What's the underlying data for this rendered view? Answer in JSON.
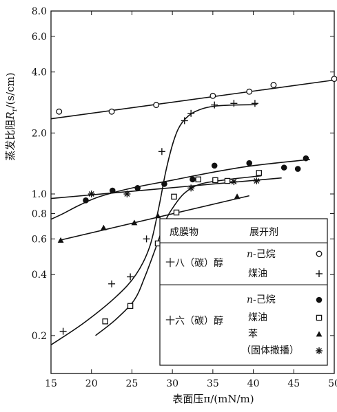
{
  "chart_data": {
    "type": "scatter",
    "title": "",
    "xlabel": "表面压π/(mN/m)",
    "ylabel": "蒸发比阻R_r/(s/cm)",
    "ylabel_main": "蒸发比阻",
    "ylabel_var": "R",
    "ylabel_sub": "r",
    "ylabel_unit": "/(s/cm)",
    "xlim": [
      15,
      50
    ],
    "ylim": [
      0.13,
      8.0
    ],
    "yscale": "log",
    "x_ticks": [
      15,
      20,
      25,
      30,
      35,
      40,
      45,
      50
    ],
    "y_ticks": [
      {
        "value": 0.2,
        "label": "0.2"
      },
      {
        "value": 0.4,
        "label": "0.4"
      },
      {
        "value": 0.6,
        "label": "0.6"
      },
      {
        "value": 0.8,
        "label": "0.8"
      },
      {
        "value": 1.0,
        "label": "1.0"
      },
      {
        "value": 2.0,
        "label": "2.0"
      },
      {
        "value": 4.0,
        "label": "4.0"
      },
      {
        "value": 6.0,
        "label": "6.0"
      },
      {
        "value": 8.0,
        "label": "8.0"
      }
    ],
    "grid": false,
    "legend": {
      "position": "bottom-right",
      "header_film": "成膜物",
      "header_solvent": "展开剂",
      "groups": [
        {
          "film": "十八（碳）醇",
          "items": [
            {
              "solvent_prefix": "n",
              "solvent": "-己烷",
              "marker": "circle-open"
            },
            {
              "solvent_prefix": "",
              "solvent": "煤油",
              "marker": "plus"
            }
          ]
        },
        {
          "film": "十六（碳）醇",
          "items": [
            {
              "solvent_prefix": "n",
              "solvent": "-己烷",
              "marker": "circle-filled"
            },
            {
              "solvent_prefix": "",
              "solvent": "煤油",
              "marker": "square-open"
            },
            {
              "solvent_prefix": "",
              "solvent": "苯",
              "marker": "triangle-filled"
            },
            {
              "solvent_prefix": "",
              "solvent": "（固体撒播）",
              "marker": "asterisk"
            }
          ]
        }
      ]
    },
    "series": [
      {
        "key": "octadecanol-hexane",
        "marker": "circle-open",
        "points": [
          [
            16,
            2.55
          ],
          [
            22.5,
            2.55
          ],
          [
            28,
            2.75
          ],
          [
            35,
            3.05
          ],
          [
            39.5,
            3.2
          ],
          [
            42.5,
            3.45
          ],
          [
            50,
            3.7
          ]
        ],
        "fit": [
          [
            15,
            2.35
          ],
          [
            50,
            3.65
          ]
        ]
      },
      {
        "key": "octadecanol-kerosene",
        "marker": "plus",
        "points": [
          [
            16.5,
            0.21
          ],
          [
            22.5,
            0.36
          ],
          [
            24.8,
            0.39
          ],
          [
            26.8,
            0.6
          ],
          [
            28.7,
            1.62
          ],
          [
            31.5,
            2.3
          ],
          [
            32.3,
            2.5
          ],
          [
            35.2,
            2.75
          ],
          [
            37.6,
            2.8
          ],
          [
            40.2,
            2.8
          ]
        ],
        "fit": [
          [
            15,
            0.18
          ],
          [
            19,
            0.23
          ],
          [
            23,
            0.31
          ],
          [
            25.5,
            0.4
          ],
          [
            27.2,
            0.55
          ],
          [
            28.3,
            0.85
          ],
          [
            29.2,
            1.3
          ],
          [
            30.2,
            1.85
          ],
          [
            31.2,
            2.25
          ],
          [
            32.8,
            2.55
          ],
          [
            35.5,
            2.72
          ],
          [
            40.5,
            2.76
          ]
        ]
      },
      {
        "key": "hexadecanol-hexane",
        "marker": "circle-filled",
        "points": [
          [
            19.3,
            0.93
          ],
          [
            22.6,
            1.04
          ],
          [
            25.7,
            1.07
          ],
          [
            29,
            1.12
          ],
          [
            32.5,
            1.18
          ],
          [
            35.2,
            1.38
          ],
          [
            39.5,
            1.42
          ],
          [
            43.8,
            1.35
          ],
          [
            45.5,
            1.33
          ],
          [
            46.5,
            1.5
          ]
        ],
        "fit": [
          [
            15,
            0.75
          ],
          [
            16.5,
            0.8
          ],
          [
            18.5,
            0.88
          ],
          [
            21,
            0.97
          ],
          [
            25,
            1.07
          ],
          [
            30,
            1.17
          ],
          [
            35,
            1.28
          ],
          [
            40,
            1.38
          ],
          [
            47,
            1.48
          ]
        ]
      },
      {
        "key": "hexadecanol-kerosene",
        "marker": "square-open",
        "points": [
          [
            21.7,
            0.235
          ],
          [
            24.8,
            0.28
          ],
          [
            28.2,
            0.57
          ],
          [
            30.2,
            0.97
          ],
          [
            30.5,
            0.81
          ],
          [
            33.2,
            1.18
          ],
          [
            35.3,
            1.17
          ],
          [
            36.8,
            1.16
          ],
          [
            40.7,
            1.27
          ]
        ],
        "fit": [
          [
            20.5,
            0.2
          ],
          [
            23,
            0.24
          ],
          [
            25.3,
            0.3
          ],
          [
            26.6,
            0.39
          ],
          [
            28,
            0.55
          ],
          [
            29.1,
            0.73
          ],
          [
            30.1,
            0.86
          ],
          [
            31.5,
            1.01
          ],
          [
            33.5,
            1.12
          ],
          [
            37,
            1.18
          ],
          [
            41,
            1.23
          ]
        ]
      },
      {
        "key": "hexadecanol-benzene",
        "marker": "triangle-filled",
        "points": [
          [
            16.2,
            0.59
          ],
          [
            21.5,
            0.68
          ],
          [
            25.3,
            0.72
          ],
          [
            28.2,
            0.78
          ],
          [
            38,
            0.97
          ]
        ],
        "fit": [
          [
            16,
            0.59
          ],
          [
            39.5,
            0.98
          ]
        ]
      },
      {
        "key": "hexadecanol-solid-spreading",
        "marker": "asterisk",
        "points": [
          [
            20,
            1.0
          ],
          [
            24.4,
            1.0
          ],
          [
            32.3,
            1.07
          ],
          [
            37.6,
            1.15
          ],
          [
            40.4,
            1.16
          ]
        ],
        "fit": [
          [
            15,
            0.95
          ],
          [
            43.5,
            1.2
          ]
        ]
      }
    ]
  }
}
